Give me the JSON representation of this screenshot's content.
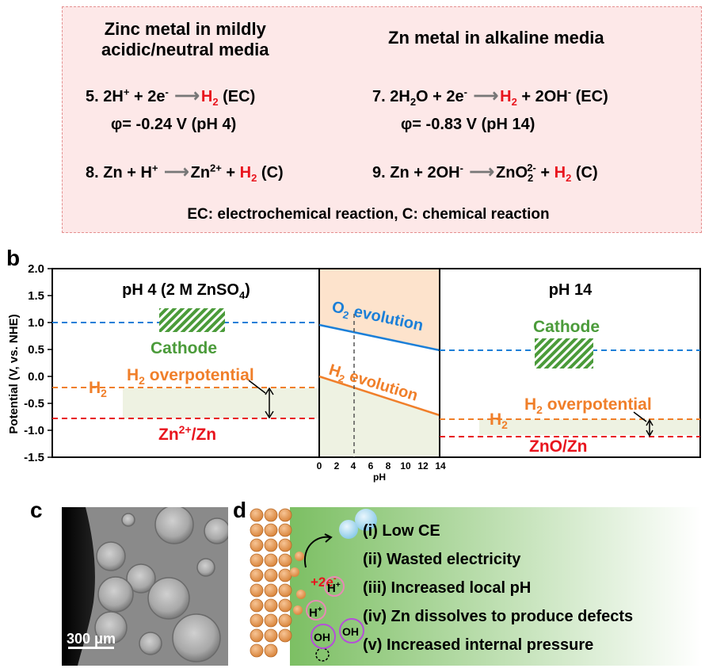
{
  "panel_a": {
    "letter": "a",
    "left_title_line1": "Zinc metal in mildly",
    "left_title_line2": "acidic/neutral media",
    "right_title": "Zn metal in alkaline media",
    "eq5_prefix": "5. 2H",
    "eq5_sup1": "+",
    "eq5_mid": " + 2e",
    "eq5_sup2": "-",
    "eq5_h": "H",
    "eq5_sub": "2",
    "eq5_suffix": " (EC)",
    "eq5_potential": "φ= -0.24 V (pH 4)",
    "eq7_prefix": "7. 2H",
    "eq7_sub1": "2",
    "eq7_mid": "O + 2e",
    "eq7_sup1": "-",
    "eq7_h": "H",
    "eq7_sub2": "2",
    "eq7_suffix": " + 2OH",
    "eq7_sup2": "-",
    "eq7_tail": " (EC)",
    "eq7_potential": "φ= -0.83 V (pH 14)",
    "eq8_prefix": "8. Zn + H",
    "eq8_sup1": "+",
    "eq8_zn": "Zn",
    "eq8_sup2": "2+",
    "eq8_plus": " + ",
    "eq8_h": "H",
    "eq8_sub": "2",
    "eq8_suffix": " (C)",
    "eq9_prefix": "9. Zn + 2OH",
    "eq9_sup1": "-",
    "eq9_zno": "ZnO",
    "eq9_sub1": "2",
    "eq9_sup2": "2-",
    "eq9_plus": " + ",
    "eq9_h": "H",
    "eq9_sub2": "2",
    "eq9_suffix": " (C)",
    "footnote": "EC: electrochemical reaction, C: chemical reaction"
  },
  "panel_b": {
    "letter": "b",
    "ylabel": "Potential (V, vs. NHE)",
    "y_ticks": [
      "2.0",
      "1.5",
      "1.0",
      "0.5",
      "0.0",
      "-0.5",
      "-1.0",
      "-1.5"
    ],
    "x_ticks": [
      "0",
      "2",
      "4",
      "6",
      "8",
      "10",
      "12",
      "14"
    ],
    "xlabel": "pH",
    "left_title": "pH 4 (2 M ZnSO",
    "left_title_sub": "4",
    "left_title_end": ")",
    "cathode_left": "Cathode",
    "h2_left": "H",
    "h2_left_sub": "2",
    "overpot_left_h": "H",
    "overpot_left_sub": "2",
    "overpot_left_text": " overpotential",
    "zn_couple": "Zn",
    "zn_couple_sup": "2+",
    "zn_couple_end": "/Zn",
    "o2_label": "O",
    "o2_sub": "2",
    "o2_end": " evolution",
    "h2evo_label": "H",
    "h2evo_sub": "2",
    "h2evo_end": " evolution",
    "right_title": "pH 14",
    "cathode_right": "Cathode",
    "h2_right": "H",
    "h2_right_sub": "2",
    "overpot_right_h": "H",
    "overpot_right_sub": "2",
    "overpot_right_text": " overpotential",
    "zno_couple": "ZnO/Zn",
    "colors": {
      "blue": "#1b7fd8",
      "orange": "#f07f2a",
      "red": "#e8141d",
      "green": "#4b9b3a",
      "band": "#eef2e2",
      "peach": "#fde3cc"
    }
  },
  "panel_c": {
    "letter": "c",
    "scale_label": "300 μm"
  },
  "panel_d": {
    "letter": "d",
    "electron_label": "+2e",
    "electron_sup": "-",
    "h_label1": "H",
    "h_sup1": "+",
    "h_label2": "H",
    "h_sup2": "+",
    "oh_label1": "OH",
    "oh_label2": "OH",
    "items": [
      "(i) Low CE",
      "(ii) Wasted electricity",
      "(iii) Increased local pH",
      "(iv) Zn dissolves to produce defects",
      "(v) Increased internal pressure"
    ]
  }
}
